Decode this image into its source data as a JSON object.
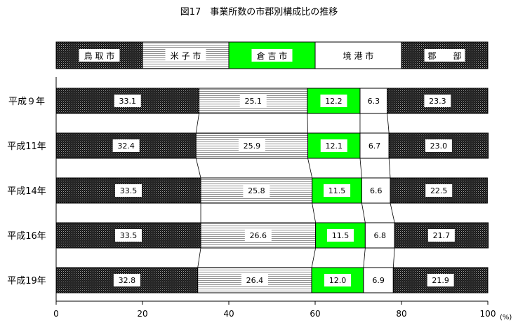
{
  "chart_data": {
    "type": "bar",
    "orientation": "horizontal",
    "stacked": true,
    "normalized": true,
    "title": "図17　事業所数の市郡別構成比の推移",
    "xlabel": "",
    "ylabel": "",
    "unit": "(%)",
    "xlim": [
      0,
      100
    ],
    "xticks": [
      "0",
      "20",
      "40",
      "60",
      "80",
      "100"
    ],
    "categories": [
      "平成９年",
      "平成11年",
      "平成14年",
      "平成16年",
      "平成19年"
    ],
    "legend_position": "top",
    "series": [
      {
        "name": "鳥 取 市",
        "pattern": "dark-dots",
        "values": [
          33.1,
          32.4,
          33.5,
          33.5,
          32.8
        ]
      },
      {
        "name": "米 子 市",
        "pattern": "horizontal-lines",
        "values": [
          25.1,
          25.9,
          25.8,
          26.6,
          26.4
        ]
      },
      {
        "name": "倉 吉 市",
        "pattern": "solid",
        "color": "#00ff00",
        "values": [
          12.2,
          12.1,
          11.5,
          11.5,
          12.0
        ]
      },
      {
        "name": "境 港 市",
        "pattern": "solid",
        "color": "#ffffff",
        "values": [
          6.3,
          6.7,
          6.6,
          6.8,
          6.9
        ]
      },
      {
        "name": "郡　　部",
        "pattern": "dark-dots",
        "values": [
          23.3,
          23.0,
          22.5,
          21.7,
          21.9
        ]
      }
    ],
    "value_labels": [
      [
        "33.1",
        "25.1",
        "12.2",
        "6.3",
        "23.3"
      ],
      [
        "32.4",
        "25.9",
        "12.1",
        "6.7",
        "23.0"
      ],
      [
        "33.5",
        "25.8",
        "11.5",
        "6.6",
        "22.5"
      ],
      [
        "33.5",
        "26.6",
        "11.5",
        "6.8",
        "21.7"
      ],
      [
        "32.8",
        "26.4",
        "12.0",
        "6.9",
        "21.9"
      ]
    ],
    "connector_lines": true,
    "grid": false
  }
}
